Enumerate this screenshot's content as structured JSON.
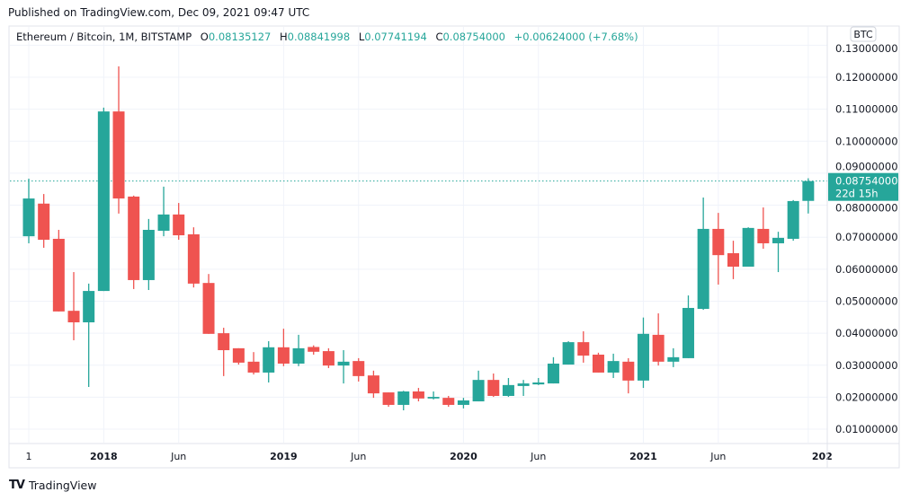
{
  "published": "Published on TradingView.com, Dec 09, 2021 09:47 UTC",
  "legend": {
    "symbol": "Ethereum / Bitcoin, 1M, BITSTAMP",
    "open_label": "O",
    "open": "0.08135127",
    "high_label": "H",
    "high": "0.08841998",
    "low_label": "L",
    "low": "0.07741194",
    "close_label": "C",
    "close": "0.08754000",
    "change": "+0.00624000 (+7.68%)"
  },
  "price_axis": {
    "currency_badge": "BTC",
    "last_price": "0.08754000",
    "countdown": "22d 15h"
  },
  "brand": {
    "logo_icon": "tradingview-logo-icon",
    "name": "TradingView"
  },
  "colors": {
    "up": "#26a69a",
    "down": "#ef5350",
    "grid": "#f0f3fa",
    "text": "#131722"
  },
  "chart_data": {
    "type": "candlestick",
    "title": "Ethereum / Bitcoin, 1M, BITSTAMP",
    "ylim": [
      0.005,
      0.135
    ],
    "grid": true,
    "y_ticks": [
      "0.13000000",
      "0.12000000",
      "0.11000000",
      "0.10000000",
      "0.09000000",
      "0.08000000",
      "0.07000000",
      "0.06000000",
      "0.05000000",
      "0.04000000",
      "0.03000000",
      "0.02000000",
      "0.01000000"
    ],
    "y_tick_values": [
      0.13,
      0.12,
      0.11,
      0.1,
      0.09,
      0.08,
      0.07,
      0.06,
      0.05,
      0.04,
      0.03,
      0.02,
      0.01
    ],
    "x_ticks": [
      {
        "label": "1",
        "month": "2017-08"
      },
      {
        "label": "2018",
        "month": "2018-01"
      },
      {
        "label": "Jun",
        "month": "2018-06"
      },
      {
        "label": "2019",
        "month": "2019-01"
      },
      {
        "label": "Jun",
        "month": "2019-06"
      },
      {
        "label": "2020",
        "month": "2020-01"
      },
      {
        "label": "Jun",
        "month": "2020-06"
      },
      {
        "label": "2021",
        "month": "2021-01"
      },
      {
        "label": "Jun",
        "month": "2021-06"
      },
      {
        "label": "202",
        "month": "2021-12"
      }
    ],
    "candles": [
      {
        "t": "2017-08",
        "o": 0.0703,
        "h": 0.0883,
        "l": 0.0681,
        "c": 0.0821
      },
      {
        "t": "2017-09",
        "o": 0.0805,
        "h": 0.0835,
        "l": 0.0667,
        "c": 0.0692
      },
      {
        "t": "2017-10",
        "o": 0.0695,
        "h": 0.0723,
        "l": 0.0468,
        "c": 0.0468
      },
      {
        "t": "2017-11",
        "o": 0.047,
        "h": 0.0591,
        "l": 0.0378,
        "c": 0.0434
      },
      {
        "t": "2017-12",
        "o": 0.0434,
        "h": 0.0555,
        "l": 0.0232,
        "c": 0.0532
      },
      {
        "t": "2018-01",
        "o": 0.0532,
        "h": 0.1105,
        "l": 0.0532,
        "c": 0.1093
      },
      {
        "t": "2018-02",
        "o": 0.1093,
        "h": 0.1234,
        "l": 0.0774,
        "c": 0.0821
      },
      {
        "t": "2018-03",
        "o": 0.0827,
        "h": 0.083,
        "l": 0.0538,
        "c": 0.0566
      },
      {
        "t": "2018-04",
        "o": 0.0566,
        "h": 0.0757,
        "l": 0.0535,
        "c": 0.0723
      },
      {
        "t": "2018-05",
        "o": 0.072,
        "h": 0.0858,
        "l": 0.0703,
        "c": 0.0771
      },
      {
        "t": "2018-06",
        "o": 0.0771,
        "h": 0.0807,
        "l": 0.0692,
        "c": 0.0706
      },
      {
        "t": "2018-07",
        "o": 0.0709,
        "h": 0.0731,
        "l": 0.0543,
        "c": 0.0555
      },
      {
        "t": "2018-08",
        "o": 0.0557,
        "h": 0.0585,
        "l": 0.0398,
        "c": 0.0398
      },
      {
        "t": "2018-09",
        "o": 0.04,
        "h": 0.0417,
        "l": 0.0266,
        "c": 0.0347
      },
      {
        "t": "2018-10",
        "o": 0.0353,
        "h": 0.0353,
        "l": 0.0302,
        "c": 0.0308
      },
      {
        "t": "2018-11",
        "o": 0.0311,
        "h": 0.0341,
        "l": 0.0271,
        "c": 0.0277
      },
      {
        "t": "2018-12",
        "o": 0.0277,
        "h": 0.0375,
        "l": 0.0246,
        "c": 0.0356
      },
      {
        "t": "2019-01",
        "o": 0.0356,
        "h": 0.0414,
        "l": 0.0297,
        "c": 0.0305
      },
      {
        "t": "2019-02",
        "o": 0.0305,
        "h": 0.0395,
        "l": 0.0297,
        "c": 0.0353
      },
      {
        "t": "2019-03",
        "o": 0.0357,
        "h": 0.0362,
        "l": 0.0333,
        "c": 0.0342
      },
      {
        "t": "2019-04",
        "o": 0.0344,
        "h": 0.0353,
        "l": 0.0291,
        "c": 0.0299
      },
      {
        "t": "2019-05",
        "o": 0.0299,
        "h": 0.0347,
        "l": 0.0243,
        "c": 0.0311
      },
      {
        "t": "2019-06",
        "o": 0.0313,
        "h": 0.0322,
        "l": 0.0249,
        "c": 0.0266
      },
      {
        "t": "2019-07",
        "o": 0.0268,
        "h": 0.0283,
        "l": 0.0198,
        "c": 0.0212
      },
      {
        "t": "2019-08",
        "o": 0.0215,
        "h": 0.0215,
        "l": 0.017,
        "c": 0.0176
      },
      {
        "t": "2019-09",
        "o": 0.0176,
        "h": 0.022,
        "l": 0.0159,
        "c": 0.0218
      },
      {
        "t": "2019-10",
        "o": 0.0218,
        "h": 0.0229,
        "l": 0.0187,
        "c": 0.0196
      },
      {
        "t": "2019-11",
        "o": 0.0196,
        "h": 0.0218,
        "l": 0.0193,
        "c": 0.0201
      },
      {
        "t": "2019-12",
        "o": 0.0198,
        "h": 0.0204,
        "l": 0.017,
        "c": 0.0176
      },
      {
        "t": "2020-01",
        "o": 0.0176,
        "h": 0.0198,
        "l": 0.0165,
        "c": 0.019
      },
      {
        "t": "2020-02",
        "o": 0.0187,
        "h": 0.0283,
        "l": 0.0187,
        "c": 0.0254
      },
      {
        "t": "2020-03",
        "o": 0.0254,
        "h": 0.0274,
        "l": 0.0201,
        "c": 0.0204
      },
      {
        "t": "2020-04",
        "o": 0.0204,
        "h": 0.026,
        "l": 0.0201,
        "c": 0.0238
      },
      {
        "t": "2020-05",
        "o": 0.0235,
        "h": 0.0254,
        "l": 0.0204,
        "c": 0.0243
      },
      {
        "t": "2020-06",
        "o": 0.024,
        "h": 0.026,
        "l": 0.0238,
        "c": 0.0246
      },
      {
        "t": "2020-07",
        "o": 0.0243,
        "h": 0.0325,
        "l": 0.0243,
        "c": 0.0305
      },
      {
        "t": "2020-08",
        "o": 0.0302,
        "h": 0.0375,
        "l": 0.0302,
        "c": 0.0372
      },
      {
        "t": "2020-09",
        "o": 0.0372,
        "h": 0.0406,
        "l": 0.0308,
        "c": 0.033
      },
      {
        "t": "2020-10",
        "o": 0.0333,
        "h": 0.0339,
        "l": 0.0277,
        "c": 0.0277
      },
      {
        "t": "2020-11",
        "o": 0.0277,
        "h": 0.0336,
        "l": 0.026,
        "c": 0.0313
      },
      {
        "t": "2020-12",
        "o": 0.0311,
        "h": 0.0322,
        "l": 0.0212,
        "c": 0.0252
      },
      {
        "t": "2021-01",
        "o": 0.0252,
        "h": 0.0449,
        "l": 0.0229,
        "c": 0.0398
      },
      {
        "t": "2021-02",
        "o": 0.0395,
        "h": 0.0462,
        "l": 0.0299,
        "c": 0.0311
      },
      {
        "t": "2021-03",
        "o": 0.0311,
        "h": 0.0353,
        "l": 0.0294,
        "c": 0.0325
      },
      {
        "t": "2021-04",
        "o": 0.0322,
        "h": 0.0518,
        "l": 0.0322,
        "c": 0.0479
      },
      {
        "t": "2021-05",
        "o": 0.0476,
        "h": 0.0824,
        "l": 0.0473,
        "c": 0.0726
      },
      {
        "t": "2021-06",
        "o": 0.0726,
        "h": 0.0776,
        "l": 0.0552,
        "c": 0.0644
      },
      {
        "t": "2021-07",
        "o": 0.065,
        "h": 0.0689,
        "l": 0.0569,
        "c": 0.0608
      },
      {
        "t": "2021-08",
        "o": 0.0608,
        "h": 0.0731,
        "l": 0.0608,
        "c": 0.0729
      },
      {
        "t": "2021-09",
        "o": 0.0726,
        "h": 0.0793,
        "l": 0.0664,
        "c": 0.0681
      },
      {
        "t": "2021-10",
        "o": 0.0681,
        "h": 0.0717,
        "l": 0.0591,
        "c": 0.0698
      },
      {
        "t": "2021-11",
        "o": 0.0695,
        "h": 0.0816,
        "l": 0.0689,
        "c": 0.0813
      },
      {
        "t": "2021-12",
        "o": 0.08135127,
        "h": 0.08841998,
        "l": 0.07741194,
        "c": 0.08754
      }
    ],
    "last_price_line": 0.08754
  }
}
